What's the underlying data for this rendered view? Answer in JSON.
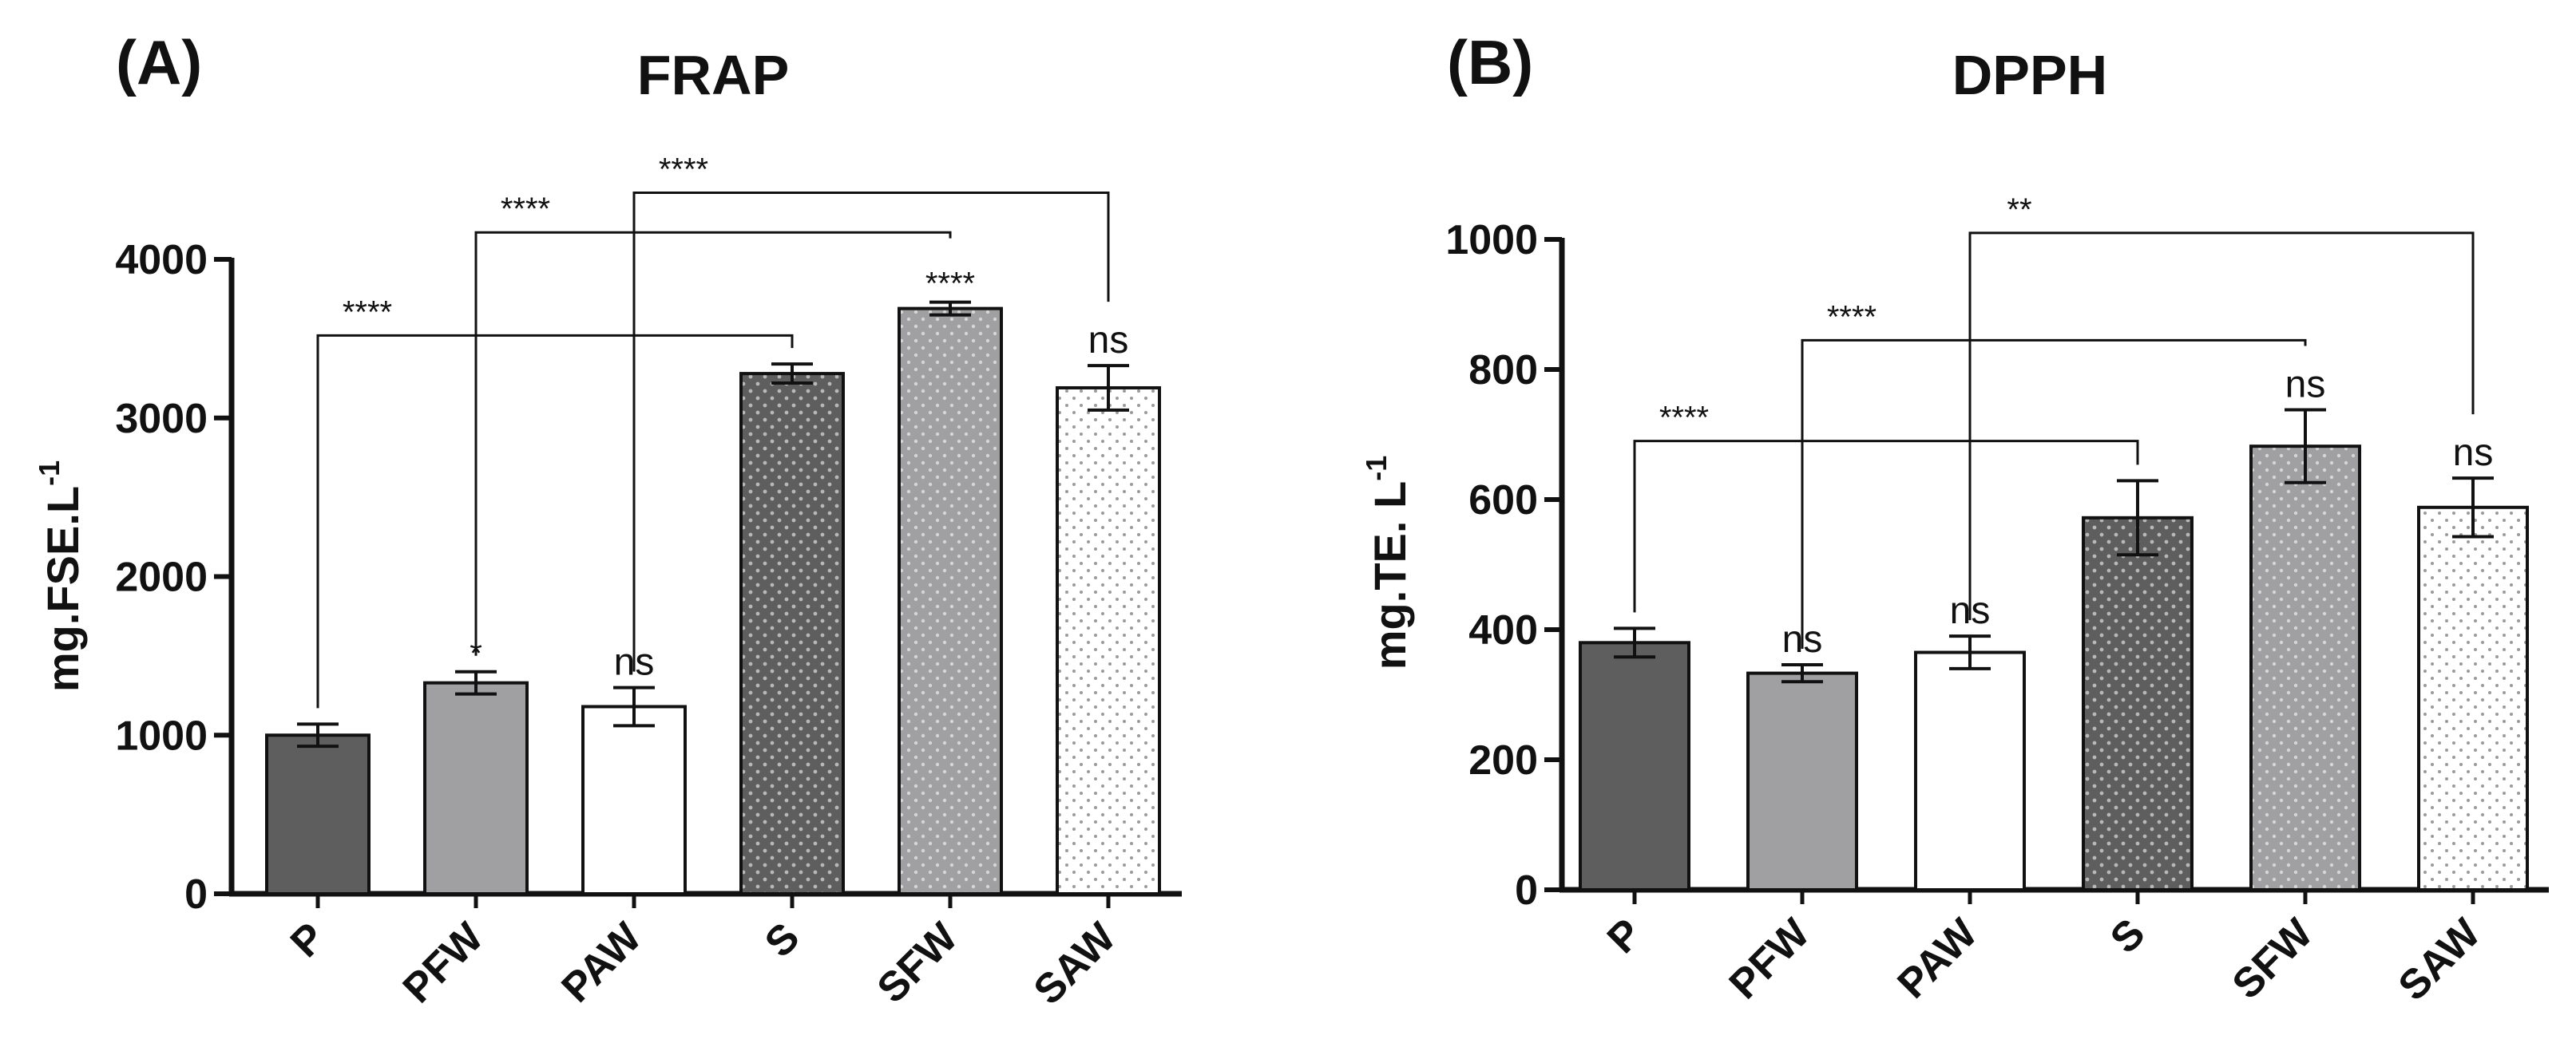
{
  "chart_data": [
    {
      "panel": "(A)",
      "type": "bar",
      "title": "FRAP",
      "xlabel": "",
      "ylabel": "mg.FSE.L",
      "ylabel_superscript": "-1",
      "ylim": [
        0,
        4000
      ],
      "yticks": [
        0,
        1000,
        2000,
        3000,
        4000
      ],
      "categories": [
        "P",
        "PFW",
        "PAW",
        "S",
        "SFW",
        "SAW"
      ],
      "values": [
        1000,
        1330,
        1180,
        3280,
        3690,
        3190
      ],
      "errors": [
        70,
        70,
        120,
        60,
        40,
        140
      ],
      "fills": [
        "dark",
        "gray",
        "white",
        "dark-dotted",
        "gray-dotted",
        "white-dotted"
      ],
      "bar_annotations": [
        "",
        "*",
        "ns",
        "",
        "****",
        "ns"
      ],
      "comparisons": [
        {
          "from": 0,
          "to": 3,
          "label": "****",
          "y": 3520
        },
        {
          "from": 1,
          "to": 4,
          "label": "****",
          "y": 4170
        },
        {
          "from": 2,
          "to": 5,
          "label": "****",
          "y": 4420
        }
      ]
    },
    {
      "panel": "(B)",
      "type": "bar",
      "title": "DPPH",
      "xlabel": "",
      "ylabel": "mg.TE. L",
      "ylabel_superscript": "-1",
      "ylim": [
        0,
        1000
      ],
      "yticks": [
        0,
        200,
        400,
        600,
        800,
        1000
      ],
      "categories": [
        "P",
        "PFW",
        "PAW",
        "S",
        "SFW",
        "SAW"
      ],
      "values": [
        380,
        333,
        365,
        572,
        682,
        588
      ],
      "errors": [
        22,
        13,
        25,
        57,
        56,
        45
      ],
      "fills": [
        "dark",
        "gray",
        "white",
        "dark-dotted",
        "gray-dotted",
        "white-dotted"
      ],
      "bar_annotations": [
        "",
        "ns",
        "ns",
        "",
        "ns",
        "ns"
      ],
      "comparisons": [
        {
          "from": 0,
          "to": 3,
          "label": "****",
          "y": 690
        },
        {
          "from": 1,
          "to": 4,
          "label": "****",
          "y": 845
        },
        {
          "from": 2,
          "to": 5,
          "label": "**",
          "y": 1010
        }
      ]
    }
  ],
  "colors": {
    "dark": "#5e5e5e",
    "gray": "#a0a0a3",
    "white": "#ffffff",
    "outline": "#111111",
    "dots_on_dark": "#bdbdbd",
    "dots_on_white": "#9a9a9a"
  }
}
